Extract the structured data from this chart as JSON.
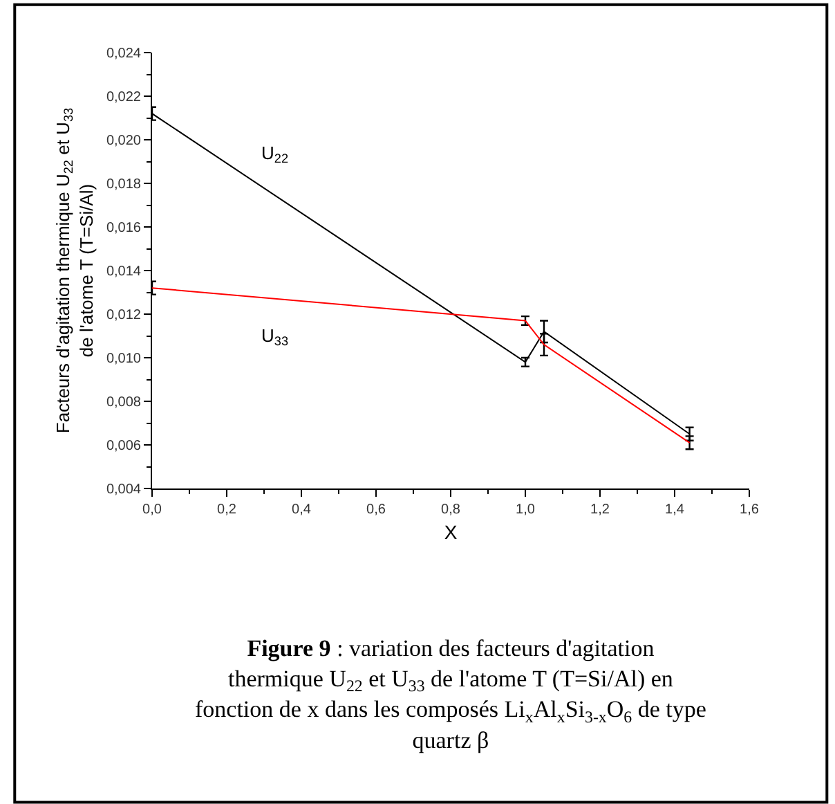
{
  "chart_data": {
    "type": "line",
    "xlabel": "X",
    "ylabel": "Facteurs d'agitation thermique U$_{22}$ et U$_{33}$ de l'atome T (T=Si/Al)",
    "series": [
      {
        "name": "U$_{22}$",
        "color": "#000000",
        "x": [
          0.0,
          1.0,
          1.05,
          1.44
        ],
        "values": [
          0.0212,
          0.0098,
          0.0112,
          0.0065
        ],
        "errors": [
          0.0003,
          0.0002,
          0.0005,
          0.0003
        ]
      },
      {
        "name": "U$_{33}$",
        "color": "#ff0000",
        "x": [
          0.0,
          1.0,
          1.05,
          1.44
        ],
        "values": [
          0.0132,
          0.0117,
          0.0106,
          0.0061
        ],
        "errors": [
          0.0003,
          0.0002,
          0.0005,
          0.0003
        ]
      }
    ],
    "xlim": [
      0.0,
      1.6
    ],
    "xticks": [
      {
        "value": 0.0,
        "label": "0,0"
      },
      {
        "value": 0.2,
        "label": "0,2"
      },
      {
        "value": 0.4,
        "label": "0,4"
      },
      {
        "value": 0.6,
        "label": "0,6"
      },
      {
        "value": 0.8,
        "label": "0,8"
      },
      {
        "value": 1.0,
        "label": "1,0"
      },
      {
        "value": 1.2,
        "label": "1,2"
      },
      {
        "value": 1.4,
        "label": "1,4"
      },
      {
        "value": 1.6,
        "label": "1,6"
      }
    ],
    "ylim": [
      0.004,
      0.024
    ],
    "yticks": [
      {
        "value": 0.004,
        "label": "0,004"
      },
      {
        "value": 0.006,
        "label": "0,006"
      },
      {
        "value": 0.008,
        "label": "0,008"
      },
      {
        "value": 0.01,
        "label": "0,010"
      },
      {
        "value": 0.012,
        "label": "0,012"
      },
      {
        "value": 0.014,
        "label": "0,014"
      },
      {
        "value": 0.016,
        "label": "0,016"
      },
      {
        "value": 0.018,
        "label": "0,018"
      },
      {
        "value": 0.02,
        "label": "0,020"
      },
      {
        "value": 0.022,
        "label": "0,022"
      },
      {
        "value": 0.024,
        "label": "0,024"
      }
    ],
    "legend": false,
    "line_style": "solid",
    "annotations": [
      "Figure 9 : variation des facteurs d'agitation thermique U$_{22}$ et U$_{33}$ de l'atome T (T=Si/Al) en fonction de x dans les composés Li$_{x}$Al$_{x}$Si$_{3-x}$O$_{6}$ de type quartz β"
    ]
  }
}
